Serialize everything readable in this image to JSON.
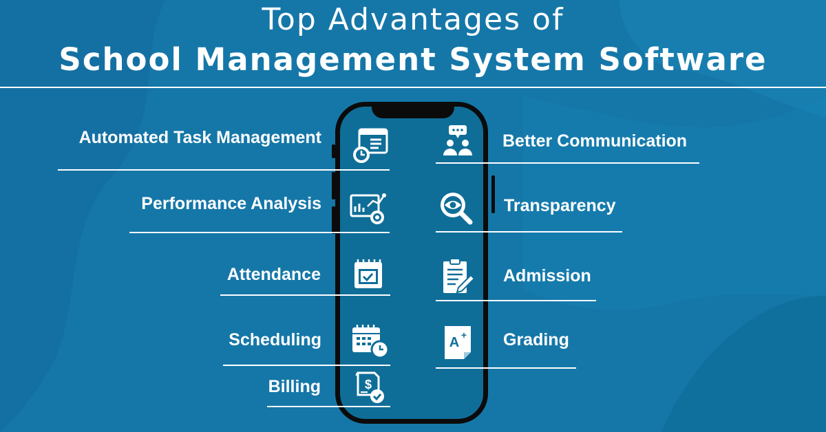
{
  "title": {
    "line1": "Top Advantages of",
    "line2": "School Management System Software"
  },
  "features_left": [
    {
      "label": "Automated Task Management",
      "icon": "task-calendar-clock-icon"
    },
    {
      "label": "Performance Analysis",
      "icon": "chart-analysis-icon"
    },
    {
      "label": "Attendance",
      "icon": "calendar-check-icon"
    },
    {
      "label": "Scheduling",
      "icon": "calendar-clock-icon"
    },
    {
      "label": "Billing",
      "icon": "invoice-dollar-icon"
    }
  ],
  "features_right": [
    {
      "label": "Better Communication",
      "icon": "people-chat-icon"
    },
    {
      "label": "Transparency",
      "icon": "magnifier-eye-icon"
    },
    {
      "label": "Admission",
      "icon": "clipboard-pen-icon"
    },
    {
      "label": "Grading",
      "icon": "grade-a-plus-icon"
    }
  ],
  "colors": {
    "background": "#1577a8",
    "background_dark": "#0f6e98",
    "phone_frame": "#0b0b0b",
    "text": "#ffffff"
  }
}
